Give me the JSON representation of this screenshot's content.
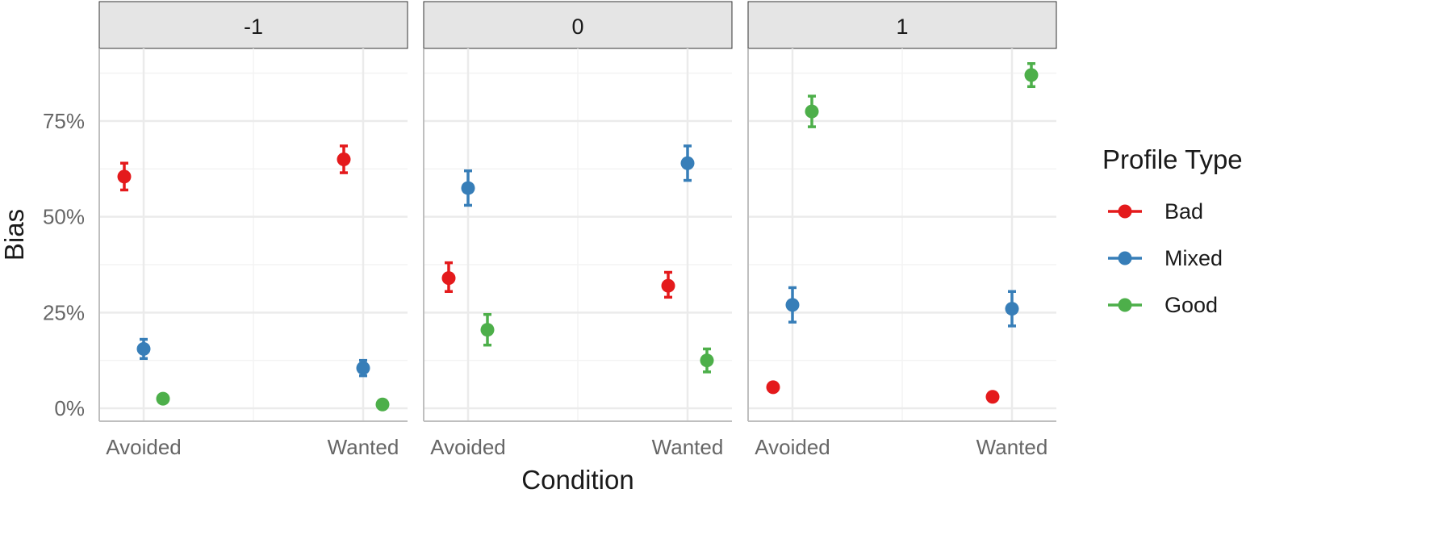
{
  "chart_data": {
    "type": "scatter",
    "xlabel": "Condition",
    "ylabel": "Bias",
    "ylim": [
      0,
      85
    ],
    "y_ticks": [
      0,
      25,
      50,
      75
    ],
    "y_tick_labels": [
      "0%",
      "25%",
      "50%",
      "75%"
    ],
    "categories": [
      "Avoided",
      "Wanted"
    ],
    "facets": [
      "-1",
      "0",
      "1"
    ],
    "legend": {
      "title": "Profile Type",
      "placement": "right",
      "entries": [
        {
          "name": "Bad",
          "color": "#E41A1C"
        },
        {
          "name": "Mixed",
          "color": "#377EB8"
        },
        {
          "name": "Good",
          "color": "#4DAF4A"
        }
      ]
    },
    "grid": true,
    "panels": [
      {
        "facet": "-1",
        "series": [
          {
            "name": "Bad",
            "points": [
              {
                "category": "Avoided",
                "y": 60.5,
                "ymin": 57,
                "ymax": 64
              },
              {
                "category": "Wanted",
                "y": 65,
                "ymin": 61.5,
                "ymax": 68.5
              }
            ]
          },
          {
            "name": "Mixed",
            "points": [
              {
                "category": "Avoided",
                "y": 15.5,
                "ymin": 13,
                "ymax": 18
              },
              {
                "category": "Wanted",
                "y": 10.5,
                "ymin": 8.5,
                "ymax": 12.5
              }
            ]
          },
          {
            "name": "Good",
            "points": [
              {
                "category": "Avoided",
                "y": 2.5,
                "ymin": 1.5,
                "ymax": 3.5
              },
              {
                "category": "Wanted",
                "y": 1,
                "ymin": 0.5,
                "ymax": 1.5
              }
            ]
          }
        ]
      },
      {
        "facet": "0",
        "series": [
          {
            "name": "Bad",
            "points": [
              {
                "category": "Avoided",
                "y": 34,
                "ymin": 30.5,
                "ymax": 38
              },
              {
                "category": "Wanted",
                "y": 32,
                "ymin": 29,
                "ymax": 35.5
              }
            ]
          },
          {
            "name": "Mixed",
            "points": [
              {
                "category": "Avoided",
                "y": 57.5,
                "ymin": 53,
                "ymax": 62
              },
              {
                "category": "Wanted",
                "y": 64,
                "ymin": 59.5,
                "ymax": 68.5
              }
            ]
          },
          {
            "name": "Good",
            "points": [
              {
                "category": "Avoided",
                "y": 20.5,
                "ymin": 16.5,
                "ymax": 24.5
              },
              {
                "category": "Wanted",
                "y": 12.5,
                "ymin": 9.5,
                "ymax": 15.5
              }
            ]
          }
        ]
      },
      {
        "facet": "1",
        "series": [
          {
            "name": "Bad",
            "points": [
              {
                "category": "Avoided",
                "y": 5.5,
                "ymin": 4.5,
                "ymax": 6.5
              },
              {
                "category": "Wanted",
                "y": 3,
                "ymin": 2.3,
                "ymax": 3.7
              }
            ]
          },
          {
            "name": "Mixed",
            "points": [
              {
                "category": "Avoided",
                "y": 27,
                "ymin": 22.5,
                "ymax": 31.5
              },
              {
                "category": "Wanted",
                "y": 26,
                "ymin": 21.5,
                "ymax": 30.5
              }
            ]
          },
          {
            "name": "Good",
            "points": [
              {
                "category": "Avoided",
                "y": 77.5,
                "ymin": 73.5,
                "ymax": 81.5
              },
              {
                "category": "Wanted",
                "y": 87,
                "ymin": 84,
                "ymax": 90
              }
            ]
          }
        ]
      }
    ]
  }
}
